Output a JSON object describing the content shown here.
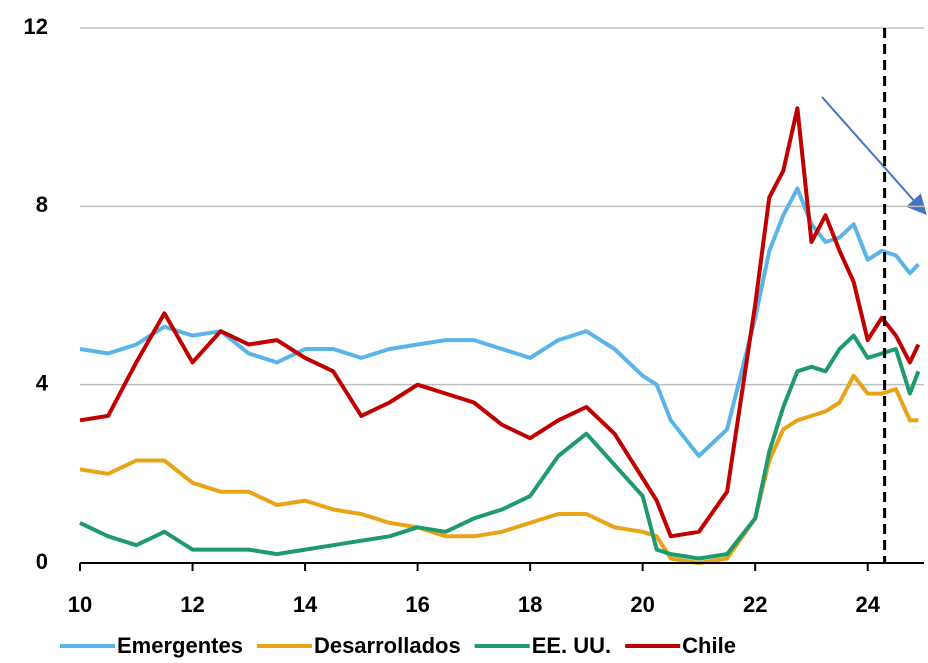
{
  "chart_data": {
    "type": "line",
    "x": [
      10,
      10.5,
      11,
      11.5,
      12,
      12.5,
      13,
      13.5,
      14,
      14.5,
      15,
      15.5,
      16,
      16.5,
      17,
      17.5,
      18,
      18.5,
      19,
      19.5,
      20,
      20.25,
      20.5,
      21,
      21.5,
      22,
      22.25,
      22.5,
      22.75,
      23,
      23.25,
      23.5,
      23.75,
      24,
      24.25,
      24.5,
      24.75,
      24.9
    ],
    "series": [
      {
        "name": "Emergentes",
        "color": "#5ab4e8",
        "values": [
          4.8,
          4.7,
          4.9,
          5.3,
          5.1,
          5.2,
          4.7,
          4.5,
          4.8,
          4.8,
          4.6,
          4.8,
          4.9,
          5.0,
          5.0,
          4.8,
          4.6,
          5.0,
          5.2,
          4.8,
          4.2,
          4.0,
          3.2,
          2.4,
          3.0,
          5.5,
          7.0,
          7.8,
          8.4,
          7.6,
          7.2,
          7.3,
          7.6,
          6.8,
          7.0,
          6.9,
          6.5,
          6.7
        ]
      },
      {
        "name": "Desarrollados",
        "color": "#e8a317",
        "values": [
          2.1,
          2.0,
          2.3,
          2.3,
          1.8,
          1.6,
          1.6,
          1.3,
          1.4,
          1.2,
          1.1,
          0.9,
          0.8,
          0.6,
          0.6,
          0.7,
          0.9,
          1.1,
          1.1,
          0.8,
          0.7,
          0.6,
          0.1,
          0.0,
          0.1,
          1.0,
          2.3,
          3.0,
          3.2,
          3.3,
          3.4,
          3.6,
          4.2,
          3.8,
          3.8,
          3.9,
          3.2,
          3.2
        ]
      },
      {
        "name": "EE. UU.",
        "color": "#1e9a6e",
        "values": [
          0.9,
          0.6,
          0.4,
          0.7,
          0.3,
          0.3,
          0.3,
          0.2,
          0.3,
          0.4,
          0.5,
          0.6,
          0.8,
          0.7,
          1.0,
          1.2,
          1.5,
          2.4,
          2.9,
          2.2,
          1.5,
          0.3,
          0.2,
          0.1,
          0.2,
          1.0,
          2.5,
          3.5,
          4.3,
          4.4,
          4.3,
          4.8,
          5.1,
          4.6,
          4.7,
          4.8,
          3.8,
          4.3
        ]
      },
      {
        "name": "Chile",
        "color": "#c00000",
        "values": [
          3.2,
          3.3,
          4.5,
          5.6,
          4.5,
          5.2,
          4.9,
          5.0,
          4.6,
          4.3,
          3.3,
          3.6,
          4.0,
          3.8,
          3.6,
          3.1,
          2.8,
          3.2,
          3.5,
          2.9,
          1.9,
          1.4,
          0.6,
          0.7,
          1.6,
          5.8,
          8.2,
          8.8,
          10.2,
          7.2,
          7.8,
          7.0,
          6.3,
          5.0,
          5.5,
          5.1,
          4.5,
          4.9
        ]
      }
    ],
    "xlim": [
      10,
      25
    ],
    "xticks": [
      10,
      12,
      14,
      16,
      18,
      20,
      22,
      24
    ],
    "ylim": [
      0,
      12
    ],
    "yticks": [
      0,
      4,
      8,
      12
    ],
    "grid": true,
    "vline": 24.3
  }
}
